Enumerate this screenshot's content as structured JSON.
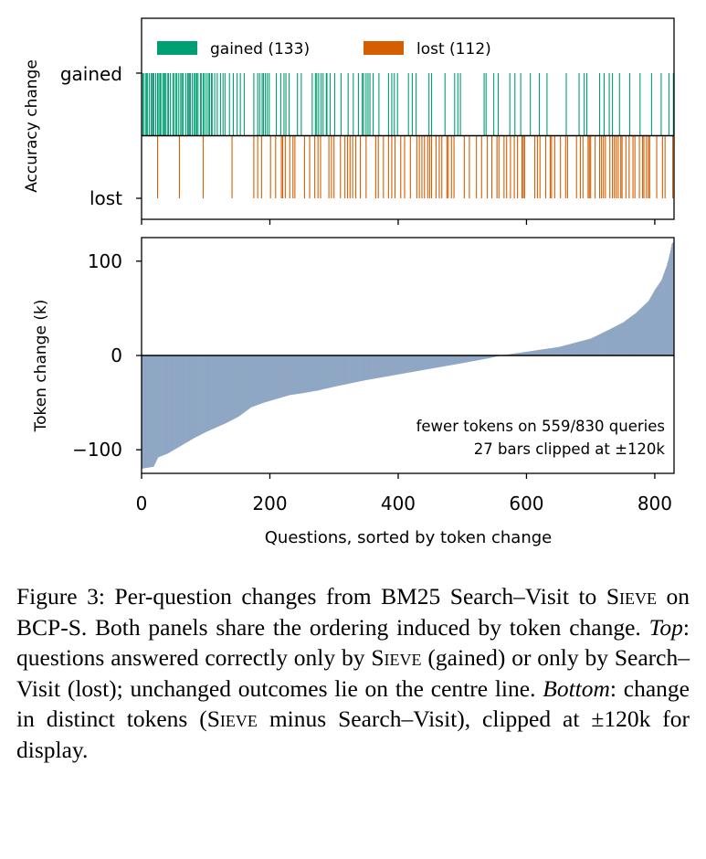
{
  "chart_data": [
    {
      "type": "barcode",
      "ylabel": "Accuracy change",
      "yticks": [
        "gained",
        "lost"
      ],
      "legend": {
        "placement": "top-left",
        "entries": [
          "gained (133)",
          "lost (112)"
        ]
      },
      "colors": {
        "gained": "#009E73",
        "lost": "#D55E00"
      },
      "xlim": [
        0,
        830
      ],
      "gained_x": [
        2,
        3,
        6,
        8,
        9,
        12,
        15,
        17,
        18,
        19,
        22,
        25,
        27,
        29,
        30,
        33,
        35,
        36,
        38,
        41,
        42,
        45,
        49,
        50,
        53,
        55,
        58,
        61,
        63,
        65,
        69,
        72,
        73,
        75,
        76,
        79,
        82,
        84,
        86,
        88,
        92,
        93,
        96,
        98,
        101,
        104,
        106,
        109,
        110,
        114,
        118,
        123,
        127,
        130,
        137,
        143,
        149,
        154,
        160,
        175,
        181,
        184,
        188,
        190,
        193,
        196,
        199,
        210,
        217,
        222,
        225,
        230,
        243,
        249,
        266,
        271,
        273,
        276,
        280,
        283,
        288,
        289,
        294,
        301,
        311,
        322,
        330,
        338,
        344,
        346,
        350,
        353,
        356,
        361,
        370,
        385,
        390,
        394,
        399,
        416,
        422,
        428,
        448,
        452,
        473,
        488,
        493,
        497,
        534,
        537,
        549,
        556,
        574,
        582,
        591,
        606,
        620,
        632,
        662,
        682,
        690,
        694,
        714,
        721,
        729,
        734,
        745,
        761,
        777,
        795,
        810,
        822,
        829
      ],
      "lost_x": [
        25,
        59,
        96,
        141,
        175,
        181,
        187,
        201,
        209,
        218,
        220,
        224,
        231,
        236,
        239,
        254,
        262,
        270,
        275,
        279,
        292,
        296,
        300,
        310,
        317,
        321,
        325,
        329,
        334,
        341,
        350,
        365,
        369,
        377,
        385,
        390,
        395,
        404,
        410,
        419,
        429,
        433,
        437,
        441,
        446,
        449,
        452,
        459,
        464,
        468,
        476,
        478,
        483,
        487,
        503,
        511,
        522,
        530,
        539,
        546,
        554,
        557,
        565,
        569,
        575,
        581,
        586,
        593,
        595,
        597,
        613,
        617,
        621,
        630,
        637,
        639,
        644,
        653,
        661,
        664,
        678,
        684,
        688,
        696,
        698,
        700,
        707,
        714,
        717,
        720,
        723,
        730,
        734,
        737,
        740,
        743,
        747,
        749,
        755,
        760,
        766,
        769,
        776,
        781,
        783,
        787,
        790,
        792,
        803,
        812,
        816,
        828
      ]
    },
    {
      "type": "bar",
      "ylabel": "Token change (k)",
      "xlabel": "Questions, sorted by token change",
      "xlim": [
        0,
        830
      ],
      "ylim": [
        -125,
        125
      ],
      "yticks": [
        -100,
        0,
        100
      ],
      "yticklabels": [
        "−100",
        "0",
        "100"
      ],
      "xticks": [
        0,
        200,
        400,
        600,
        800
      ],
      "bar_color": "#8FA7C4",
      "n": 830,
      "annotations": [
        "fewer tokens on 559/830 queries",
        "27 bars clipped at ±120k"
      ],
      "curve_knots": [
        [
          0,
          -120
        ],
        [
          18,
          -118
        ],
        [
          25,
          -108
        ],
        [
          40,
          -104
        ],
        [
          60,
          -96
        ],
        [
          80,
          -88
        ],
        [
          100,
          -81
        ],
        [
          130,
          -72
        ],
        [
          150,
          -65
        ],
        [
          170,
          -55
        ],
        [
          190,
          -50
        ],
        [
          210,
          -46
        ],
        [
          230,
          -42
        ],
        [
          250,
          -40
        ],
        [
          275,
          -37
        ],
        [
          300,
          -33
        ],
        [
          350,
          -26
        ],
        [
          400,
          -20
        ],
        [
          450,
          -14
        ],
        [
          500,
          -8
        ],
        [
          540,
          -3
        ],
        [
          560,
          0
        ],
        [
          600,
          4
        ],
        [
          650,
          9
        ],
        [
          700,
          18
        ],
        [
          730,
          28
        ],
        [
          750,
          35
        ],
        [
          770,
          45
        ],
        [
          790,
          58
        ],
        [
          800,
          70
        ],
        [
          810,
          80
        ],
        [
          818,
          95
        ],
        [
          822,
          105
        ],
        [
          826,
          118
        ],
        [
          829,
          122
        ]
      ]
    }
  ],
  "caption": {
    "label": "Figure 3:",
    "part1": "Per-question changes from BM25 Search–Visit to",
    "sieve": "Sieve",
    "part2": "on BCP-S. Both panels share the ordering induced by token change.",
    "top_label": "Top",
    "part3": ": questions answered correctly only by",
    "part4": "(gained) or only by Search–Visit (lost); unchanged outcomes lie on the centre line.",
    "bottom_label": "Bottom",
    "part5": ": change in distinct tokens (",
    "part6": "minus Search–Visit), clipped at ±120k for display."
  }
}
